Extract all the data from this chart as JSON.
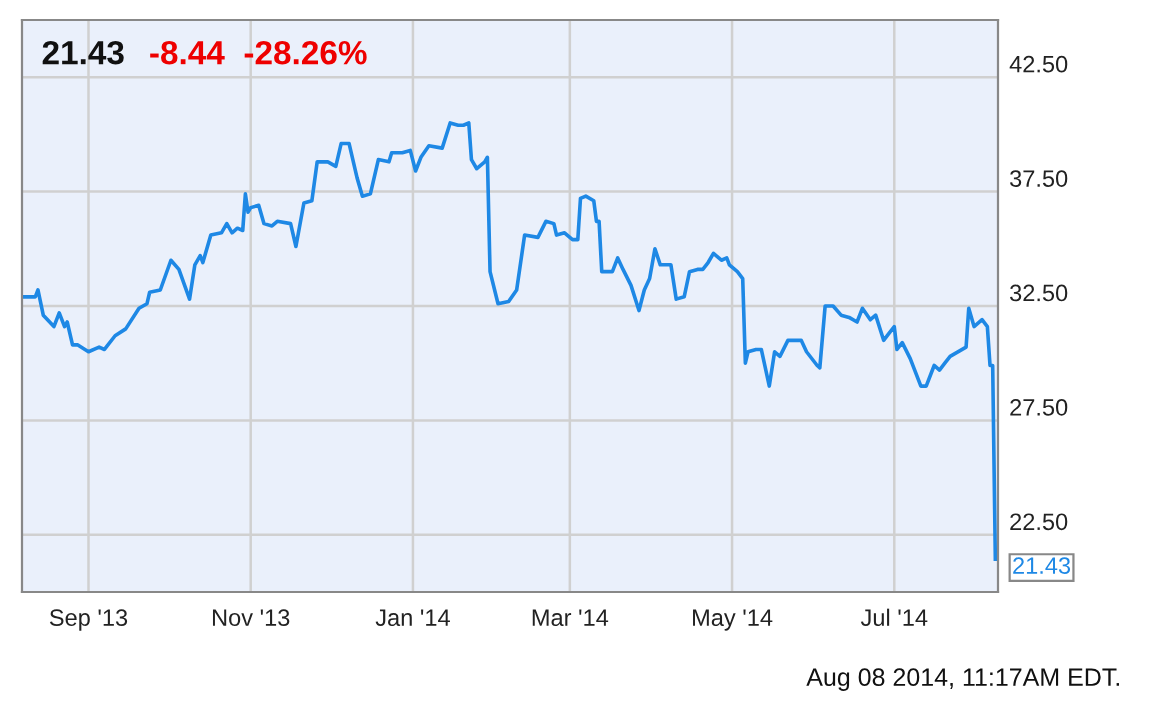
{
  "chart_data": {
    "type": "line",
    "title": "21.43",
    "subtitle": "-8.44  -28.26%",
    "annotations": [
      {
        "text": "21.43",
        "x": "2014-08-08",
        "y": 21.43
      },
      "Aug 08 2014, 11:17AM EDT."
    ],
    "x": [
      "2013-08-07",
      "2013-08-12",
      "2013-08-13",
      "2013-08-15",
      "2013-08-19",
      "2013-08-21",
      "2013-08-23",
      "2013-08-24",
      "2013-08-26",
      "2013-08-28",
      "2013-09-01",
      "2013-09-05",
      "2013-09-07",
      "2013-09-11",
      "2013-09-15",
      "2013-09-20",
      "2013-09-23",
      "2013-09-24",
      "2013-09-28",
      "2013-10-02",
      "2013-10-05",
      "2013-10-09",
      "2013-10-11",
      "2013-10-13",
      "2013-10-14",
      "2013-10-17",
      "2013-10-21",
      "2013-10-23",
      "2013-10-25",
      "2013-10-27",
      "2013-10-29",
      "2013-10-30",
      "2013-10-31",
      "2013-11-01",
      "2013-11-04",
      "2013-11-06",
      "2013-11-09",
      "2013-11-11",
      "2013-11-16",
      "2013-11-18",
      "2013-11-21",
      "2013-11-24",
      "2013-11-26",
      "2013-11-30",
      "2013-12-03",
      "2013-12-05",
      "2013-12-08",
      "2013-12-11",
      "2013-12-13",
      "2013-12-16",
      "2013-12-19",
      "2013-12-23",
      "2013-12-24",
      "2013-12-28",
      "2013-12-31",
      "2014-01-02",
      "2014-01-04",
      "2014-01-07",
      "2014-01-12",
      "2014-01-15",
      "2014-01-18",
      "2014-01-20",
      "2014-01-22",
      "2014-01-23",
      "2014-01-25",
      "2014-01-28",
      "2014-01-29",
      "2014-01-30",
      "2014-02-02",
      "2014-02-06",
      "2014-02-09",
      "2014-02-12",
      "2014-02-17",
      "2014-02-20",
      "2014-02-23",
      "2014-02-24",
      "2014-02-27",
      "2014-03-02",
      "2014-03-04",
      "2014-03-05",
      "2014-03-07",
      "2014-03-10",
      "2014-03-11",
      "2014-03-12",
      "2014-03-13",
      "2014-03-17",
      "2014-03-19",
      "2014-03-21",
      "2014-03-24",
      "2014-03-27",
      "2014-03-29",
      "2014-03-31",
      "2014-04-02",
      "2014-04-04",
      "2014-04-05",
      "2014-04-08",
      "2014-04-10",
      "2014-04-13",
      "2014-04-15",
      "2014-04-18",
      "2014-04-20",
      "2014-04-22",
      "2014-04-24",
      "2014-04-27",
      "2014-04-29",
      "2014-04-30",
      "2014-05-03",
      "2014-05-05",
      "2014-05-06",
      "2014-05-07",
      "2014-05-10",
      "2014-05-12",
      "2014-05-15",
      "2014-05-17",
      "2014-05-19",
      "2014-05-22",
      "2014-05-27",
      "2014-05-29",
      "2014-06-02",
      "2014-06-03",
      "2014-06-05",
      "2014-06-08",
      "2014-06-11",
      "2014-06-14",
      "2014-06-17",
      "2014-06-19",
      "2014-06-22",
      "2014-06-24",
      "2014-06-27",
      "2014-06-29",
      "2014-07-01",
      "2014-07-02",
      "2014-07-04",
      "2014-07-07",
      "2014-07-11",
      "2014-07-13",
      "2014-07-16",
      "2014-07-18",
      "2014-07-20",
      "2014-07-22",
      "2014-07-28",
      "2014-07-29",
      "2014-07-31",
      "2014-08-03",
      "2014-08-05",
      "2014-08-06",
      "2014-08-07",
      "2014-08-08"
    ],
    "series": [
      {
        "color": "#1e88e5",
        "values": [
          32.9,
          32.9,
          33.2,
          32.1,
          31.6,
          32.2,
          31.6,
          31.8,
          30.8,
          30.8,
          30.5,
          30.7,
          30.6,
          31.2,
          31.5,
          32.4,
          32.6,
          33.1,
          33.2,
          34.5,
          34.1,
          32.8,
          34.3,
          34.7,
          34.4,
          35.6,
          35.7,
          36.1,
          35.7,
          35.9,
          35.8,
          37.4,
          36.6,
          36.8,
          36.9,
          36.1,
          36.0,
          36.2,
          36.1,
          35.1,
          37.0,
          37.1,
          38.8,
          38.8,
          38.6,
          39.6,
          39.6,
          38.1,
          37.3,
          37.4,
          38.9,
          38.8,
          39.2,
          39.2,
          39.3,
          38.4,
          39.0,
          39.5,
          39.4,
          40.5,
          40.4,
          40.4,
          40.5,
          38.9,
          38.5,
          38.8,
          39.0,
          34.0,
          32.6,
          32.7,
          33.2,
          35.6,
          35.5,
          36.2,
          36.1,
          35.6,
          35.7,
          35.4,
          35.4,
          37.2,
          37.3,
          37.1,
          36.2,
          36.2,
          34.0,
          34.0,
          34.6,
          34.1,
          33.4,
          32.3,
          33.2,
          33.7,
          35.0,
          34.3,
          34.3,
          34.3,
          32.8,
          32.9,
          34.0,
          34.1,
          34.1,
          34.4,
          34.8,
          34.5,
          34.6,
          34.3,
          34.0,
          33.7,
          30.0,
          30.5,
          30.6,
          30.6,
          29.0,
          30.5,
          30.3,
          31.0,
          31.0,
          30.5,
          29.9,
          29.8,
          32.5,
          32.5,
          32.1,
          32.0,
          31.8,
          32.4,
          31.9,
          32.1,
          31.0,
          31.3,
          31.6,
          30.6,
          30.9,
          30.2,
          29.0,
          29.0,
          29.9,
          29.7,
          30.0,
          30.3,
          30.7,
          32.4,
          31.6,
          31.9,
          31.6,
          29.9,
          29.9,
          21.43
        ]
      }
    ],
    "xlim": [
      "2013-08-07",
      "2014-08-09"
    ],
    "ylim": [
      20,
      45
    ],
    "xticks": [
      {
        "value": "2013-09-01",
        "label": "Sep '13"
      },
      {
        "value": "2013-11-01",
        "label": "Nov '13"
      },
      {
        "value": "2014-01-01",
        "label": "Jan '14"
      },
      {
        "value": "2014-03-01",
        "label": "Mar '14"
      },
      {
        "value": "2014-05-01",
        "label": "May '14"
      },
      {
        "value": "2014-07-01",
        "label": "Jul '14"
      }
    ],
    "yticks": [
      {
        "value": 22.5,
        "label": "22.50"
      },
      {
        "value": 27.5,
        "label": "27.50"
      },
      {
        "value": 32.5,
        "label": "32.50"
      },
      {
        "value": 37.5,
        "label": "37.50"
      },
      {
        "value": 42.5,
        "label": "42.50"
      }
    ],
    "grid": true,
    "legend": false,
    "marker": "none",
    "line_style": "solid"
  }
}
